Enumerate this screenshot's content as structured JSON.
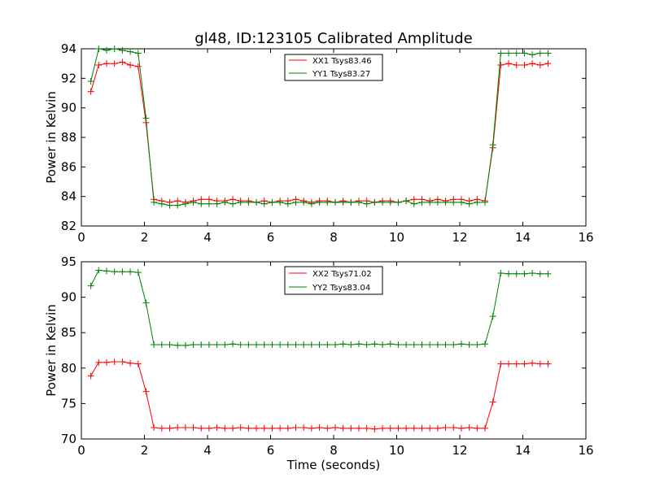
{
  "chart_data": [
    {
      "type": "line",
      "title": "gl48, ID:123105 Calibrated Amplitude",
      "xlabel": "",
      "ylabel": "Power in Kelvin",
      "xlim": [
        0,
        16
      ],
      "ylim": [
        82,
        94
      ],
      "x_ticks": [
        0,
        2,
        4,
        6,
        8,
        10,
        12,
        14,
        16
      ],
      "y_ticks": [
        82,
        84,
        86,
        88,
        90,
        92,
        94
      ],
      "legend_position": "top-center",
      "x": [
        0.3,
        0.55,
        0.8,
        1.05,
        1.3,
        1.55,
        1.8,
        2.05,
        2.3,
        2.55,
        2.8,
        3.05,
        3.3,
        3.55,
        3.8,
        4.05,
        4.3,
        4.55,
        4.8,
        5.05,
        5.3,
        5.55,
        5.8,
        6.05,
        6.3,
        6.55,
        6.8,
        7.05,
        7.3,
        7.55,
        7.8,
        8.05,
        8.3,
        8.55,
        8.8,
        9.05,
        9.3,
        9.55,
        9.8,
        10.05,
        10.3,
        10.55,
        10.8,
        11.05,
        11.3,
        11.55,
        11.8,
        12.05,
        12.3,
        12.55,
        12.8,
        13.05,
        13.3,
        13.55,
        13.8,
        14.05,
        14.3,
        14.55,
        14.8
      ],
      "series": [
        {
          "name": "XX1 Tsys83.46",
          "color": "#ff0000",
          "values": [
            91.1,
            92.9,
            93.0,
            93.0,
            93.1,
            92.9,
            92.8,
            89.0,
            83.8,
            83.7,
            83.6,
            83.7,
            83.6,
            83.7,
            83.8,
            83.8,
            83.7,
            83.7,
            83.8,
            83.7,
            83.7,
            83.6,
            83.7,
            83.6,
            83.7,
            83.7,
            83.8,
            83.7,
            83.6,
            83.7,
            83.7,
            83.6,
            83.7,
            83.6,
            83.7,
            83.7,
            83.6,
            83.7,
            83.7,
            83.6,
            83.7,
            83.8,
            83.8,
            83.7,
            83.8,
            83.7,
            83.8,
            83.8,
            83.7,
            83.8,
            83.7,
            87.3,
            92.9,
            93.0,
            92.9,
            92.9,
            93.0,
            92.9,
            93.0
          ]
        },
        {
          "name": "YY1 Tsys83.27",
          "color": "#008000",
          "values": [
            91.8,
            94.0,
            93.9,
            94.0,
            93.9,
            93.8,
            93.7,
            89.3,
            83.6,
            83.5,
            83.4,
            83.4,
            83.5,
            83.6,
            83.5,
            83.5,
            83.5,
            83.6,
            83.5,
            83.6,
            83.6,
            83.6,
            83.5,
            83.6,
            83.6,
            83.5,
            83.6,
            83.6,
            83.5,
            83.6,
            83.6,
            83.6,
            83.6,
            83.6,
            83.6,
            83.5,
            83.6,
            83.6,
            83.6,
            83.6,
            83.7,
            83.5,
            83.6,
            83.6,
            83.6,
            83.6,
            83.6,
            83.6,
            83.5,
            83.6,
            83.6,
            87.5,
            93.7,
            93.7,
            93.7,
            93.7,
            93.6,
            93.7,
            93.7
          ]
        }
      ]
    },
    {
      "type": "line",
      "title": "",
      "xlabel": "Time (seconds)",
      "ylabel": "Power in Kelvin",
      "xlim": [
        0,
        16
      ],
      "ylim": [
        70,
        95
      ],
      "x_ticks": [
        0,
        2,
        4,
        6,
        8,
        10,
        12,
        14,
        16
      ],
      "y_ticks": [
        70,
        75,
        80,
        85,
        90,
        95
      ],
      "legend_position": "top-center",
      "x": [
        0.3,
        0.55,
        0.8,
        1.05,
        1.3,
        1.55,
        1.8,
        2.05,
        2.3,
        2.55,
        2.8,
        3.05,
        3.3,
        3.55,
        3.8,
        4.05,
        4.3,
        4.55,
        4.8,
        5.05,
        5.3,
        5.55,
        5.8,
        6.05,
        6.3,
        6.55,
        6.8,
        7.05,
        7.3,
        7.55,
        7.8,
        8.05,
        8.3,
        8.55,
        8.8,
        9.05,
        9.3,
        9.55,
        9.8,
        10.05,
        10.3,
        10.55,
        10.8,
        11.05,
        11.3,
        11.55,
        11.8,
        12.05,
        12.3,
        12.55,
        12.8,
        13.05,
        13.3,
        13.55,
        13.8,
        14.05,
        14.3,
        14.55,
        14.8
      ],
      "series": [
        {
          "name": "XX2 Tsys71.02",
          "color": "#ff0000",
          "values": [
            78.9,
            80.8,
            80.8,
            80.9,
            80.9,
            80.7,
            80.6,
            76.7,
            71.6,
            71.5,
            71.5,
            71.6,
            71.6,
            71.6,
            71.5,
            71.5,
            71.6,
            71.5,
            71.5,
            71.6,
            71.5,
            71.5,
            71.5,
            71.5,
            71.5,
            71.5,
            71.6,
            71.6,
            71.5,
            71.6,
            71.5,
            71.6,
            71.5,
            71.5,
            71.5,
            71.5,
            71.4,
            71.5,
            71.5,
            71.5,
            71.5,
            71.5,
            71.5,
            71.5,
            71.5,
            71.6,
            71.6,
            71.5,
            71.6,
            71.5,
            71.5,
            75.2,
            80.6,
            80.6,
            80.6,
            80.6,
            80.7,
            80.6,
            80.6
          ]
        },
        {
          "name": "YY2 Tsys83.04",
          "color": "#008000",
          "values": [
            91.6,
            93.8,
            93.7,
            93.6,
            93.6,
            93.6,
            93.5,
            89.2,
            83.3,
            83.3,
            83.3,
            83.2,
            83.2,
            83.3,
            83.3,
            83.3,
            83.3,
            83.3,
            83.4,
            83.3,
            83.3,
            83.3,
            83.3,
            83.3,
            83.3,
            83.3,
            83.3,
            83.3,
            83.3,
            83.3,
            83.3,
            83.3,
            83.4,
            83.3,
            83.4,
            83.3,
            83.4,
            83.3,
            83.4,
            83.3,
            83.3,
            83.3,
            83.3,
            83.3,
            83.3,
            83.3,
            83.3,
            83.4,
            83.3,
            83.3,
            83.4,
            87.3,
            93.4,
            93.3,
            93.3,
            93.3,
            93.4,
            93.3,
            93.3
          ]
        }
      ]
    }
  ]
}
